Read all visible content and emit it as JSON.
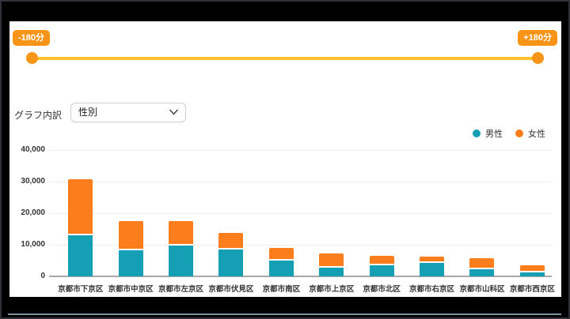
{
  "slider": {
    "min_label": "-180分",
    "max_label": "+180分",
    "track_color": "#fdc12d",
    "handle_color": "#f99417"
  },
  "controls": {
    "breakdown_label": "グラフ内訳",
    "breakdown_value": "性別"
  },
  "legend": [
    {
      "label": "男性",
      "color": "#149fb5"
    },
    {
      "label": "女性",
      "color": "#fb7d1b"
    }
  ],
  "chart_data": {
    "type": "bar",
    "stacked": true,
    "categories": [
      "京都市下京区",
      "京都市中京区",
      "京都市左京区",
      "京都市伏見区",
      "京都市南区",
      "京都市上京区",
      "京都市北区",
      "京都市右京区",
      "京都市山科区",
      "京都市西京区"
    ],
    "series": [
      {
        "name": "男性",
        "color": "#149fb5",
        "values": [
          13000,
          8200,
          9700,
          8400,
          5100,
          2800,
          3600,
          4300,
          2300,
          1300
        ]
      },
      {
        "name": "女性",
        "color": "#fb7d1b",
        "values": [
          17800,
          9200,
          7700,
          5200,
          4000,
          4400,
          3000,
          1900,
          3400,
          2300
        ]
      }
    ],
    "totals": [
      30800,
      17400,
      17400,
      13600,
      9100,
      7200,
      6600,
      6200,
      5700,
      3600
    ],
    "title": "",
    "xlabel": "",
    "ylabel": "",
    "ylim": [
      0,
      40000
    ],
    "yticks": [
      {
        "value": 40000,
        "label": "40,000"
      },
      {
        "value": 30000,
        "label": "30,000"
      },
      {
        "value": 20000,
        "label": "20,000"
      },
      {
        "value": 10000,
        "label": "10,000"
      },
      {
        "value": 0,
        "label": "0"
      }
    ],
    "grid": true,
    "legend_position": "top-right"
  }
}
